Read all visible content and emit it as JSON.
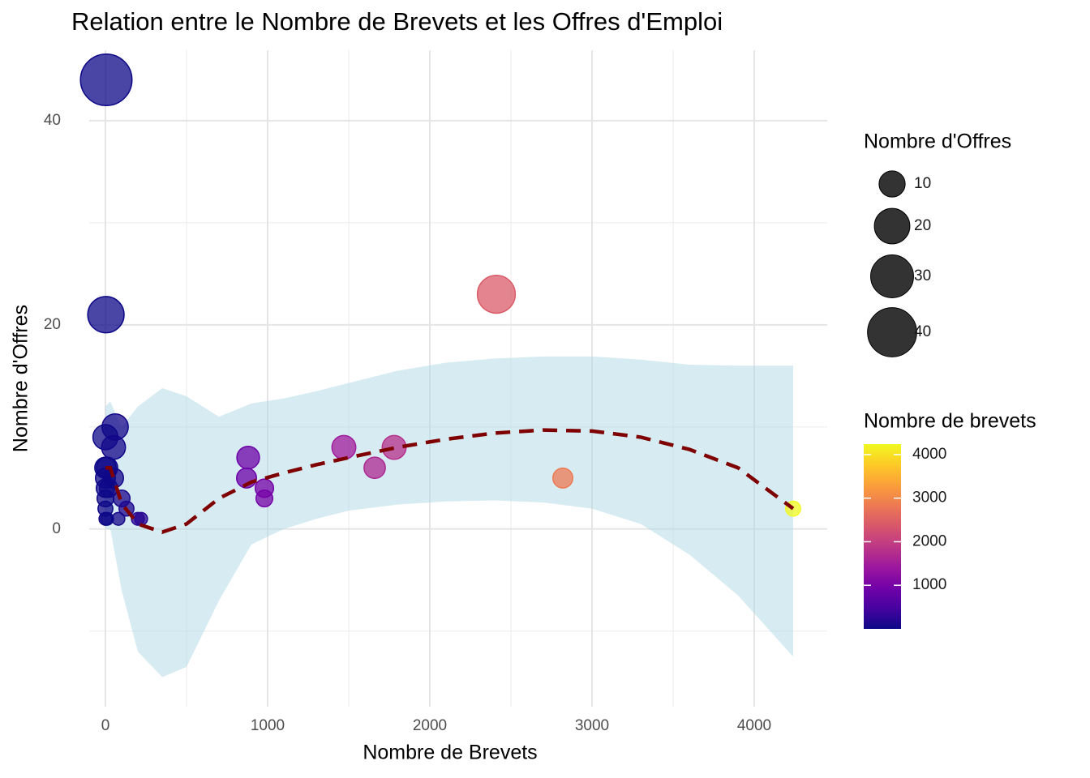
{
  "chart_data": {
    "type": "scatter",
    "title": "Relation entre le Nombre de Brevets et les Offres d'Emploi",
    "x_label": "Nombre de Brevets",
    "y_label": "Nombre d'Offres",
    "xlim": [
      -100,
      4450
    ],
    "ylim": [
      -17.4,
      46.9
    ],
    "xticks": [
      0,
      1000,
      2000,
      3000,
      4000
    ],
    "yticks": [
      0,
      20,
      40
    ],
    "x_minor_grid": [
      500,
      1500,
      2500,
      3500
    ],
    "y_minor_grid": [
      -10,
      10,
      30
    ],
    "grid": true,
    "x": [
      5,
      3,
      2410,
      60,
      0,
      50,
      880,
      1470,
      1780,
      1660,
      870,
      980,
      980,
      2820,
      4240,
      0,
      10,
      50,
      0,
      20,
      0,
      100,
      0,
      0,
      130,
      80,
      200,
      220,
      0,
      10
    ],
    "values": [
      44,
      21,
      23,
      10,
      9,
      8,
      7,
      8,
      8,
      6,
      5,
      4,
      3,
      5,
      2,
      6,
      6,
      5,
      5,
      4,
      4,
      3,
      3,
      2,
      2,
      1,
      1,
      1,
      1,
      1
    ],
    "point_alpha": 0.75,
    "size_legend": {
      "title": "Nombre d'Offres",
      "values": [
        10,
        20,
        30,
        40
      ],
      "color": "#000000"
    },
    "color_legend": {
      "title": "Nombre de brevets",
      "lim": [
        0,
        4240
      ],
      "ticks": [
        1000,
        2000,
        3000,
        4000
      ],
      "colors": [
        "#0d0887",
        "#46039f",
        "#7201a8",
        "#9c179e",
        "#bd3786",
        "#d8576b",
        "#ed7953",
        "#fb9f3a",
        "#fdca26",
        "#f0f921"
      ]
    },
    "trend": {
      "color": "#7f0000",
      "band_color": "#add8e6",
      "x": [
        0,
        30,
        100,
        200,
        350,
        500,
        700,
        900,
        1100,
        1300,
        1500,
        1800,
        2100,
        2400,
        2700,
        3000,
        3300,
        3600,
        3900,
        4240
      ],
      "values": [
        6,
        6,
        2.5,
        0.5,
        -0.3,
        0.5,
        3,
        4.6,
        5.5,
        6.3,
        7,
        8,
        8.8,
        9.4,
        9.7,
        9.6,
        9,
        7.8,
        6,
        2
      ],
      "upper": [
        12,
        12.5,
        10,
        12,
        13.8,
        13,
        11,
        12.3,
        12.8,
        13.5,
        14.3,
        15.5,
        16.3,
        16.7,
        16.9,
        16.9,
        16.6,
        16.1,
        16,
        16
      ],
      "lower": [
        0,
        0,
        -6,
        -12,
        -14.5,
        -13.5,
        -7,
        -1.5,
        0,
        1,
        1.8,
        2.4,
        2.7,
        2.8,
        2.6,
        2,
        0.5,
        -2.5,
        -6.5,
        -12.5
      ]
    }
  }
}
